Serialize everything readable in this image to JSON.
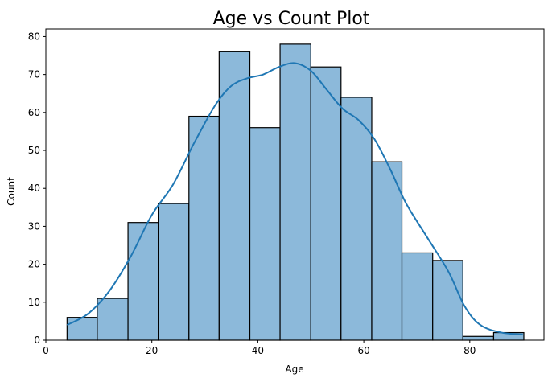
{
  "chart_data": {
    "type": "bar",
    "subtype": "histogram-with-kde",
    "title": "Age vs Count Plot",
    "xlabel": "Age",
    "ylabel": "Count",
    "xlim": [
      0,
      94
    ],
    "ylim": [
      0,
      82
    ],
    "xticks": [
      0,
      20,
      40,
      60,
      80
    ],
    "yticks": [
      0,
      10,
      20,
      30,
      40,
      50,
      60,
      70,
      80
    ],
    "grid": false,
    "bar_color": "#8cb9da",
    "edge_color": "#000000",
    "line_color": "#1f77b4",
    "bins": [
      {
        "x0": 4.0,
        "x1": 9.7,
        "count": 6
      },
      {
        "x0": 9.7,
        "x1": 15.5,
        "count": 11
      },
      {
        "x0": 15.5,
        "x1": 21.2,
        "count": 31
      },
      {
        "x0": 21.2,
        "x1": 27.0,
        "count": 36
      },
      {
        "x0": 27.0,
        "x1": 32.7,
        "count": 59
      },
      {
        "x0": 32.7,
        "x1": 38.5,
        "count": 76
      },
      {
        "x0": 38.5,
        "x1": 44.2,
        "count": 56
      },
      {
        "x0": 44.2,
        "x1": 50.0,
        "count": 78
      },
      {
        "x0": 50.0,
        "x1": 55.7,
        "count": 72
      },
      {
        "x0": 55.7,
        "x1": 61.5,
        "count": 64
      },
      {
        "x0": 61.5,
        "x1": 67.2,
        "count": 47
      },
      {
        "x0": 67.2,
        "x1": 73.0,
        "count": 23
      },
      {
        "x0": 73.0,
        "x1": 78.7,
        "count": 21
      },
      {
        "x0": 78.7,
        "x1": 84.5,
        "count": 1
      },
      {
        "x0": 84.5,
        "x1": 90.2,
        "count": 2
      }
    ],
    "kde": {
      "x": [
        4,
        8,
        12,
        16,
        20,
        24,
        28,
        32,
        35,
        38,
        41,
        44,
        47,
        50,
        53,
        56,
        59,
        62,
        65,
        68,
        72,
        76,
        79,
        82,
        86,
        90
      ],
      "y": [
        4,
        7,
        13,
        22,
        33,
        41,
        52,
        62,
        67,
        69,
        70,
        72,
        73,
        71,
        66,
        61,
        58,
        53,
        45,
        36,
        27,
        18,
        9,
        4,
        2,
        1.5
      ]
    }
  }
}
